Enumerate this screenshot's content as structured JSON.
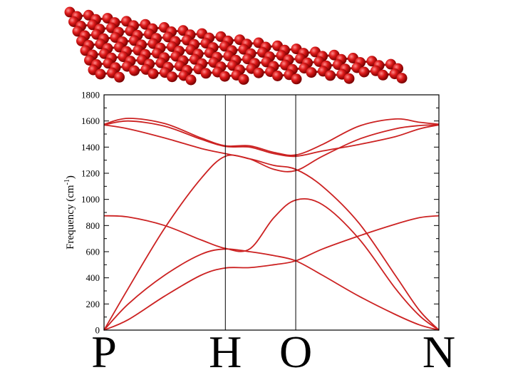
{
  "structure_image": {
    "description_icon": "graphene-sheet-ball-and-stick",
    "atom_color": "#cc1111",
    "bond_color": "#991010"
  },
  "chart_data": {
    "type": "line",
    "title": "",
    "xlabel": "",
    "ylabel": "Frequency (cm",
    "ylabel_superscript": "-1",
    "ylabel_close": ")",
    "ylim": [
      0,
      1800
    ],
    "yticks": [
      0,
      200,
      400,
      600,
      800,
      1000,
      1200,
      1400,
      1600,
      1800
    ],
    "kpoint_labels": [
      "P",
      "H",
      "O",
      "N"
    ],
    "kpoint_positions": [
      0,
      1,
      1.58,
      2.76
    ],
    "grid": false,
    "line_color": "#cc2222",
    "series": [
      {
        "x": [
          0,
          0.2,
          0.5,
          0.8,
          1.0,
          1.2,
          1.4,
          1.58,
          1.8,
          2.1,
          2.4,
          2.6,
          2.76
        ],
        "values": [
          0,
          80,
          260,
          420,
          475,
          478,
          500,
          530,
          620,
          720,
          810,
          860,
          875
        ]
      },
      {
        "x": [
          0,
          0.2,
          0.5,
          0.8,
          1.0,
          1.2,
          1.4,
          1.58,
          1.8,
          2.1,
          2.4,
          2.6,
          2.76
        ],
        "values": [
          0,
          200,
          420,
          580,
          620,
          600,
          570,
          530,
          420,
          260,
          120,
          40,
          0
        ]
      },
      {
        "x": [
          0,
          0.2,
          0.5,
          0.8,
          1.0,
          1.2,
          1.4,
          1.58,
          1.8,
          2.1,
          2.4,
          2.6,
          2.76
        ],
        "values": [
          875,
          865,
          800,
          690,
          625,
          620,
          860,
          995,
          960,
          700,
          320,
          110,
          0
        ]
      },
      {
        "x": [
          0,
          0.2,
          0.5,
          0.8,
          1.0,
          1.2,
          1.4,
          1.58,
          1.8,
          2.1,
          2.4,
          2.6,
          2.76
        ],
        "values": [
          0,
          320,
          780,
          1160,
          1330,
          1310,
          1260,
          1230,
          1100,
          820,
          420,
          150,
          0
        ]
      },
      {
        "x": [
          0,
          0.2,
          0.5,
          0.8,
          1.0,
          1.2,
          1.4,
          1.58,
          1.8,
          2.1,
          2.4,
          2.6,
          2.76
        ],
        "values": [
          1570,
          1540,
          1470,
          1390,
          1350,
          1310,
          1230,
          1220,
          1330,
          1460,
          1540,
          1565,
          1570
        ]
      },
      {
        "x": [
          0,
          0.2,
          0.5,
          0.8,
          1.0,
          1.2,
          1.4,
          1.58,
          1.8,
          2.1,
          2.4,
          2.6,
          2.76
        ],
        "values": [
          1570,
          1600,
          1560,
          1460,
          1405,
          1400,
          1350,
          1330,
          1370,
          1420,
          1480,
          1540,
          1570
        ]
      },
      {
        "x": [
          0,
          0.2,
          0.5,
          0.8,
          1.0,
          1.2,
          1.4,
          1.58,
          1.8,
          2.1,
          2.4,
          2.6,
          2.76
        ],
        "values": [
          1575,
          1620,
          1580,
          1470,
          1410,
          1410,
          1360,
          1340,
          1420,
          1560,
          1615,
          1590,
          1575
        ]
      }
    ]
  }
}
